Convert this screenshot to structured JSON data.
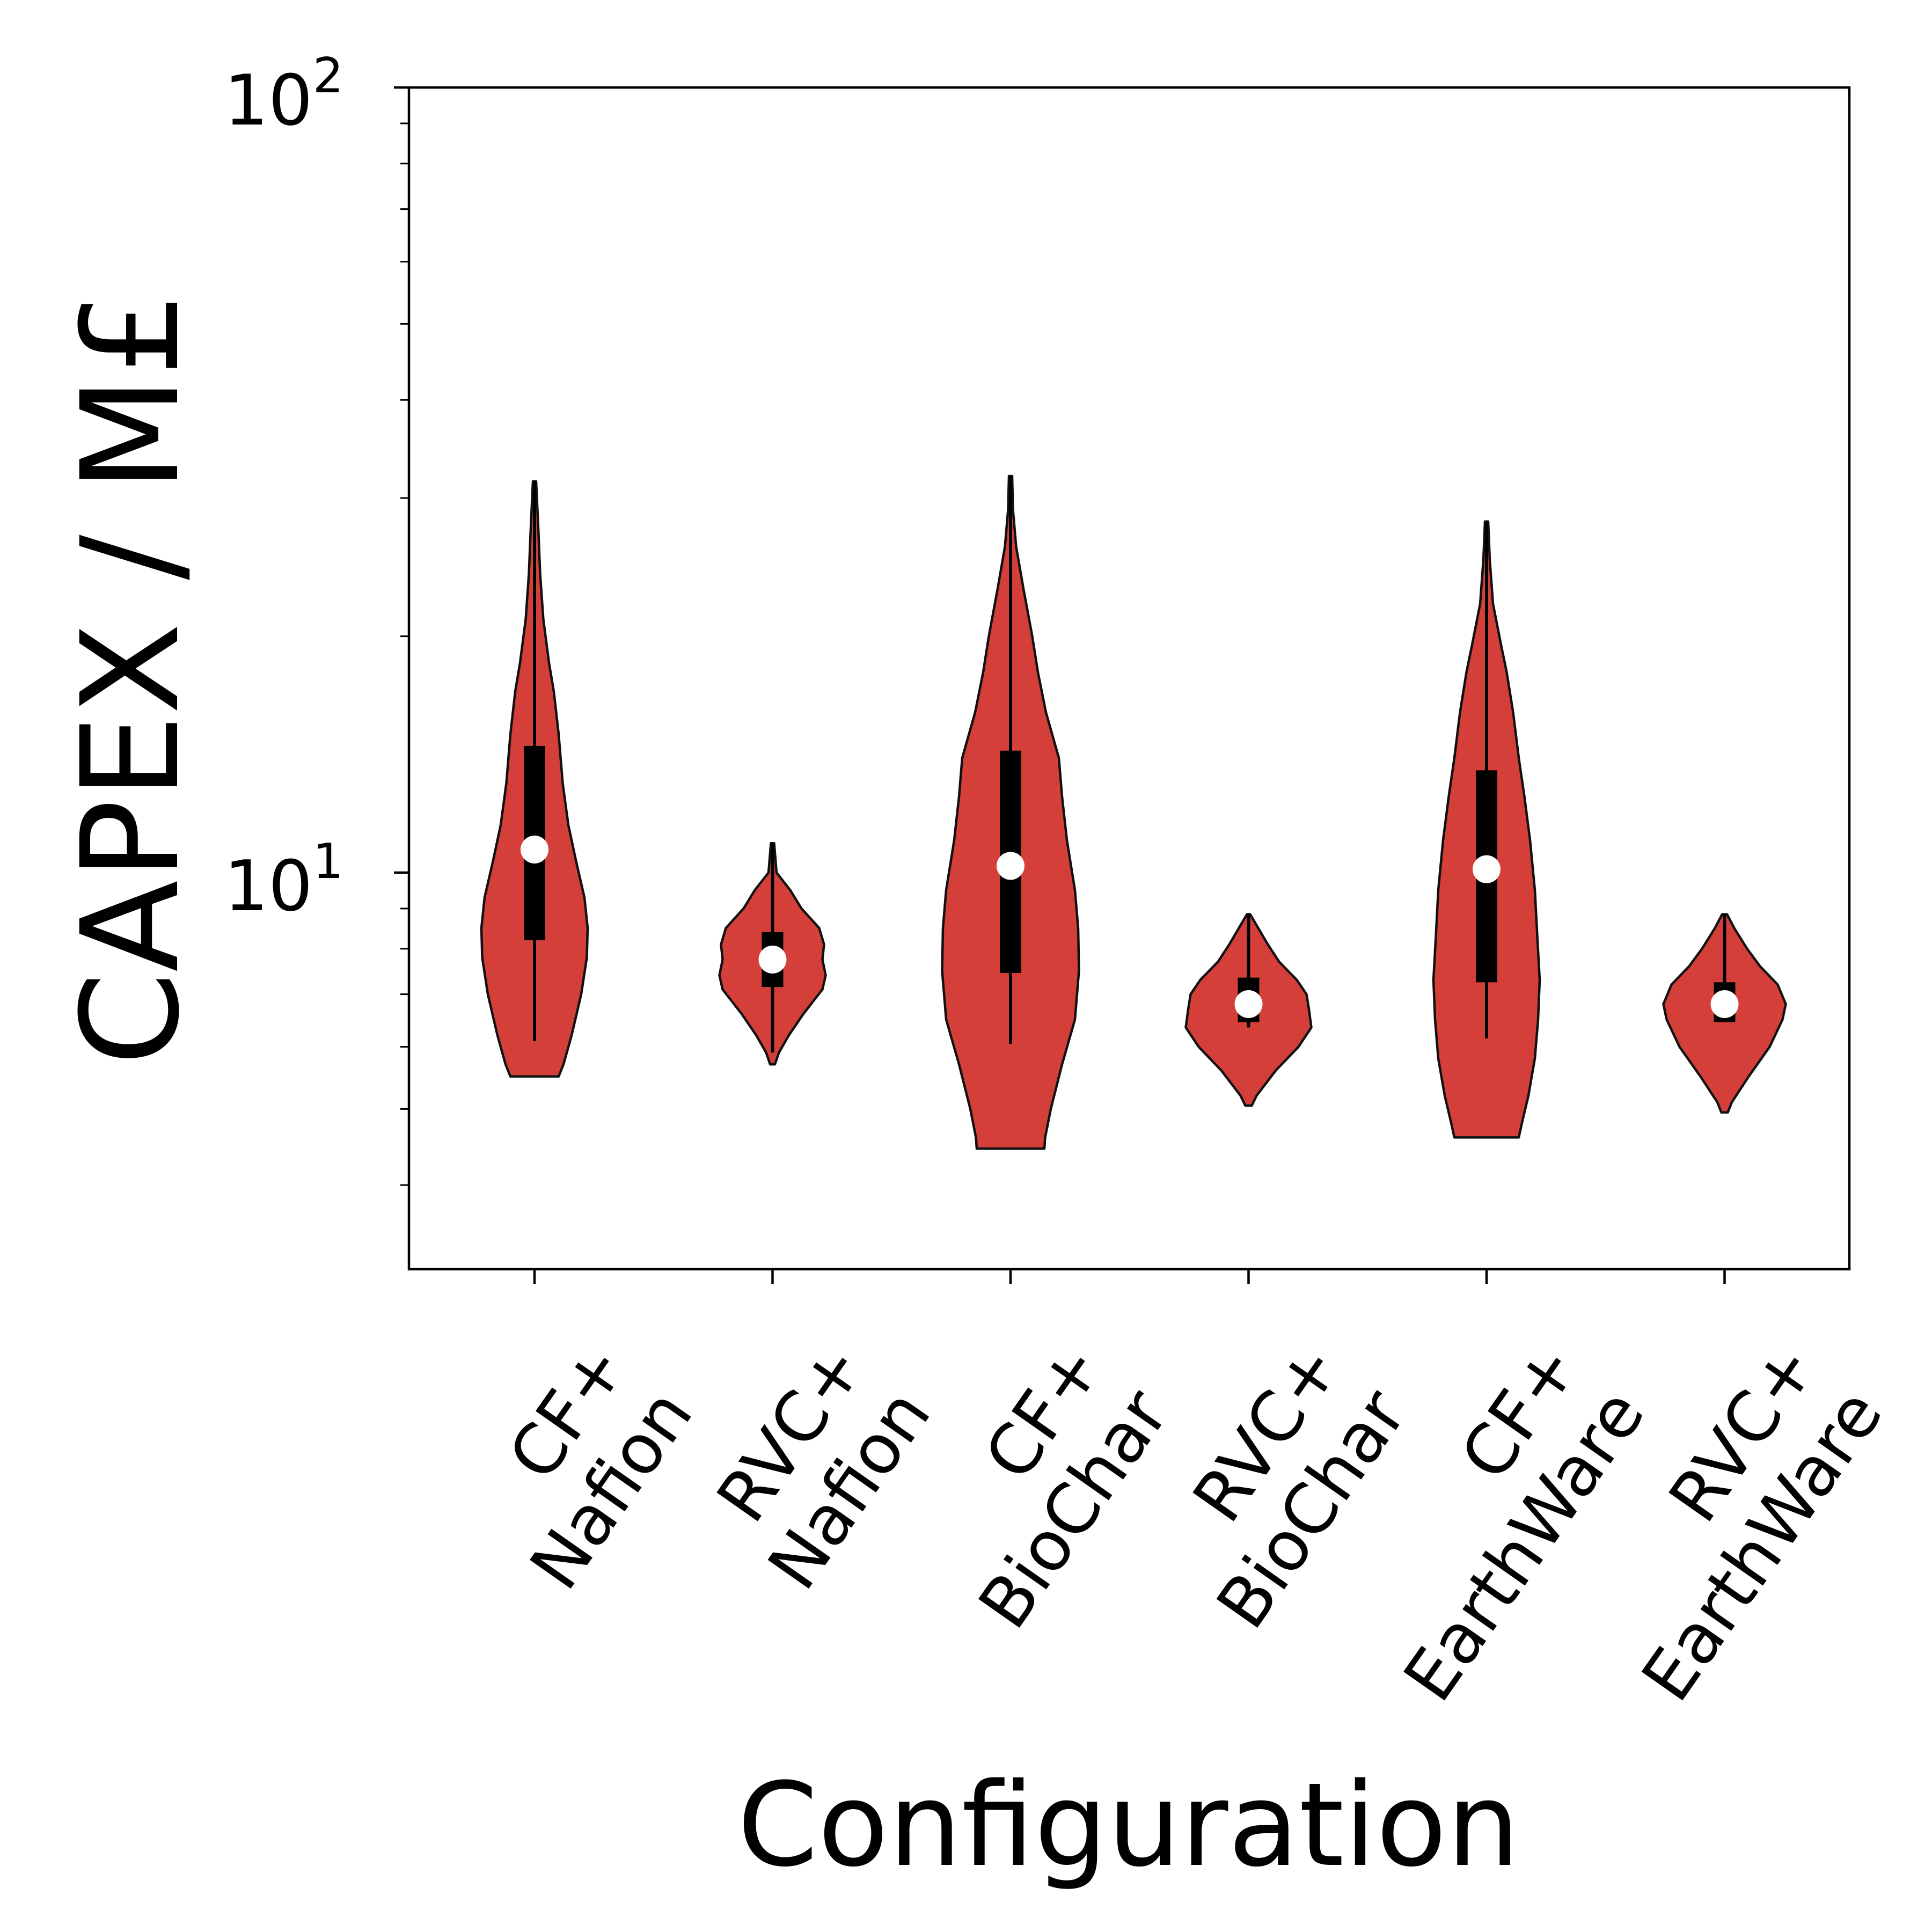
{
  "chart_data": {
    "type": "violin",
    "xlabel": "Configuration",
    "ylabel": "CAPEX / M£",
    "yscale": "log",
    "ylim": [
      3.15,
      100
    ],
    "y_tick_labels": [
      {
        "value": 10,
        "base": "10",
        "exp": "1"
      },
      {
        "value": 100,
        "base": "10",
        "exp": "2"
      }
    ],
    "categories": [
      {
        "line1": "CF+",
        "line2": "Nafion"
      },
      {
        "line1": "RVC+",
        "line2": "Nafion"
      },
      {
        "line1": "CF+",
        "line2": "BioChar"
      },
      {
        "line1": "RVC+",
        "line2": "BioChar"
      },
      {
        "line1": "CF+",
        "line2": "EarthWare"
      },
      {
        "line1": "RVC+",
        "line2": "EarthWare"
      }
    ],
    "series": [
      {
        "min": 5.5,
        "whisker_low": 6.1,
        "q1": 8.2,
        "median": 10.7,
        "q3": 14.5,
        "max": 31.5,
        "profile": [
          [
            5.5,
            0.3
          ],
          [
            5.7,
            0.36
          ],
          [
            6.2,
            0.46
          ],
          [
            7.0,
            0.58
          ],
          [
            7.8,
            0.65
          ],
          [
            8.5,
            0.66
          ],
          [
            9.3,
            0.62
          ],
          [
            10.3,
            0.52
          ],
          [
            11.5,
            0.42
          ],
          [
            13.0,
            0.35
          ],
          [
            15.0,
            0.3
          ],
          [
            17.0,
            0.24
          ],
          [
            18.5,
            0.18
          ],
          [
            21.0,
            0.11
          ],
          [
            24.0,
            0.07
          ],
          [
            27.0,
            0.05
          ],
          [
            31.5,
            0.02
          ]
        ]
      },
      {
        "min": 5.7,
        "whisker_low": 5.9,
        "q1": 7.15,
        "median": 7.75,
        "q3": 8.4,
        "max": 10.9,
        "profile": [
          [
            5.7,
            0.03
          ],
          [
            5.9,
            0.08
          ],
          [
            6.2,
            0.2
          ],
          [
            6.6,
            0.38
          ],
          [
            7.1,
            0.62
          ],
          [
            7.4,
            0.66
          ],
          [
            7.75,
            0.62
          ],
          [
            8.1,
            0.64
          ],
          [
            8.5,
            0.58
          ],
          [
            9.0,
            0.36
          ],
          [
            9.5,
            0.22
          ],
          [
            10.0,
            0.05
          ],
          [
            10.9,
            0.02
          ]
        ]
      },
      {
        "min": 4.45,
        "whisker_low": 6.05,
        "q1": 7.45,
        "median": 10.2,
        "q3": 14.3,
        "max": 32.0,
        "profile": [
          [
            4.45,
            0.42
          ],
          [
            4.6,
            0.43
          ],
          [
            5.0,
            0.5
          ],
          [
            5.7,
            0.64
          ],
          [
            6.5,
            0.8
          ],
          [
            7.5,
            0.85
          ],
          [
            8.5,
            0.84
          ],
          [
            9.5,
            0.8
          ],
          [
            11.0,
            0.7
          ],
          [
            12.5,
            0.64
          ],
          [
            14.0,
            0.6
          ],
          [
            16.0,
            0.44
          ],
          [
            18.0,
            0.34
          ],
          [
            20.0,
            0.27
          ],
          [
            23.0,
            0.16
          ],
          [
            26.0,
            0.07
          ],
          [
            29.0,
            0.03
          ],
          [
            32.0,
            0.02
          ]
        ]
      },
      {
        "min": 5.05,
        "whisker_low": 6.35,
        "q1": 6.45,
        "median": 6.8,
        "q3": 7.35,
        "max": 8.85,
        "profile": [
          [
            5.05,
            0.04
          ],
          [
            5.2,
            0.1
          ],
          [
            5.6,
            0.34
          ],
          [
            6.0,
            0.62
          ],
          [
            6.35,
            0.78
          ],
          [
            6.7,
            0.75
          ],
          [
            7.0,
            0.72
          ],
          [
            7.3,
            0.6
          ],
          [
            7.7,
            0.38
          ],
          [
            8.1,
            0.24
          ],
          [
            8.5,
            0.12
          ],
          [
            8.85,
            0.02
          ]
        ]
      },
      {
        "min": 4.6,
        "whisker_low": 6.15,
        "q1": 7.25,
        "median": 10.1,
        "q3": 13.5,
        "max": 28.0,
        "profile": [
          [
            4.6,
            0.4
          ],
          [
            4.8,
            0.44
          ],
          [
            5.2,
            0.52
          ],
          [
            5.8,
            0.6
          ],
          [
            6.5,
            0.64
          ],
          [
            7.3,
            0.66
          ],
          [
            8.3,
            0.63
          ],
          [
            9.5,
            0.6
          ],
          [
            11.0,
            0.54
          ],
          [
            12.5,
            0.47
          ],
          [
            14.0,
            0.4
          ],
          [
            16.0,
            0.33
          ],
          [
            18.0,
            0.25
          ],
          [
            19.5,
            0.18
          ],
          [
            22.0,
            0.08
          ],
          [
            25.0,
            0.04
          ],
          [
            28.0,
            0.02
          ]
        ]
      },
      {
        "min": 4.95,
        "whisker_low": 6.45,
        "q1": 6.45,
        "median": 6.8,
        "q3": 7.25,
        "max": 8.85,
        "profile": [
          [
            4.95,
            0.04
          ],
          [
            5.1,
            0.09
          ],
          [
            5.5,
            0.3
          ],
          [
            6.0,
            0.56
          ],
          [
            6.5,
            0.72
          ],
          [
            6.8,
            0.76
          ],
          [
            7.2,
            0.66
          ],
          [
            7.6,
            0.44
          ],
          [
            8.0,
            0.28
          ],
          [
            8.5,
            0.12
          ],
          [
            8.85,
            0.03
          ]
        ]
      }
    ],
    "colors": {
      "violin_fill": "#d43f3a",
      "violin_edge": "#111111",
      "box": "#000000",
      "median_marker": "#ffffff"
    },
    "grid": false,
    "legend": "none"
  }
}
